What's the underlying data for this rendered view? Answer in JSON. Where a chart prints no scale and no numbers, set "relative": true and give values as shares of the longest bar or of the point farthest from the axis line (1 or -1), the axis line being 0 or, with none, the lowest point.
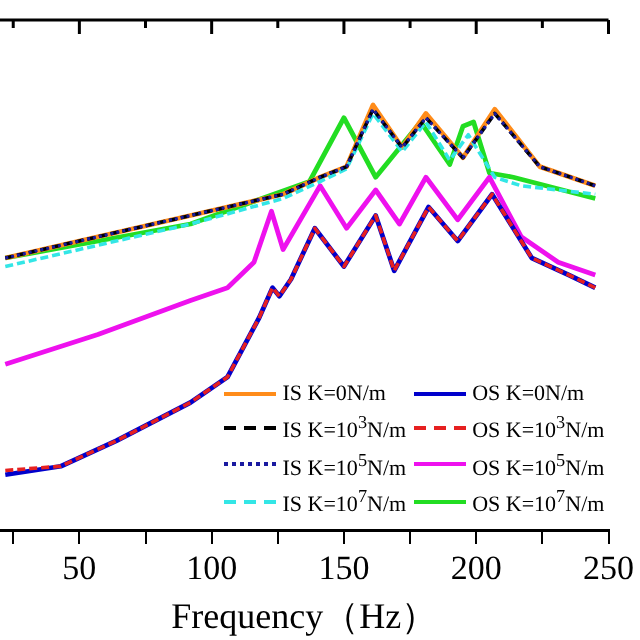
{
  "chart_data": {
    "type": "line",
    "xlabel": "Frequency（Hz）",
    "relative": true,
    "xlim": [
      20,
      250
    ],
    "xticks": [
      {
        "value": 25,
        "label": null
      },
      50,
      {
        "value": 75,
        "label": null
      },
      100,
      {
        "value": 125,
        "label": null
      },
      150,
      {
        "value": 175,
        "label": null
      },
      200,
      {
        "value": 225,
        "label": null
      },
      250
    ],
    "tick_labels": "x",
    "grid": false,
    "legend": "bottom right",
    "marker": "none",
    "series": [
      {
        "name": "IS K=0N/m",
        "color": "#ff8c1a",
        "line_style": "solid",
        "x": [
          22,
          92,
          127,
          141,
          151,
          161,
          172,
          181,
          195,
          207,
          224,
          245
        ],
        "values": [
          0.64,
          0.74,
          0.79,
          0.83,
          0.855,
          1.0,
          0.9,
          0.98,
          0.876,
          0.99,
          0.855,
          0.81
        ]
      },
      {
        "name": "IS K=10$^{3}$N/m",
        "color": "#000000",
        "line_style": "dashed",
        "x": [
          22,
          92,
          127,
          141,
          151,
          161,
          172,
          181,
          195,
          207,
          224,
          245
        ],
        "values": [
          0.64,
          0.74,
          0.79,
          0.83,
          0.855,
          0.99,
          0.9,
          0.97,
          0.876,
          0.98,
          0.855,
          0.81
        ]
      },
      {
        "name": "IS K=10$^{5}$N/m",
        "color": "#1a1aa0",
        "line_style": "dotted",
        "x": [
          22,
          92,
          127,
          141,
          151,
          161,
          172,
          181,
          195,
          207,
          224,
          245
        ],
        "values": [
          0.64,
          0.74,
          0.79,
          0.83,
          0.855,
          0.99,
          0.9,
          0.97,
          0.876,
          0.98,
          0.855,
          0.81
        ]
      },
      {
        "name": "IS K=10$^{7}$N/m",
        "color": "#33e6e6",
        "line_style": "dashed",
        "x": [
          22,
          92,
          127,
          141,
          151,
          161,
          172,
          181,
          190,
          197,
          207,
          217,
          245
        ],
        "values": [
          0.62,
          0.72,
          0.78,
          0.82,
          0.85,
          0.98,
          0.89,
          0.96,
          0.87,
          0.93,
          0.83,
          0.81,
          0.79
        ]
      },
      {
        "name": "OS K=0N/m",
        "color": "#0000cc",
        "line_style": "solid",
        "x": [
          22,
          43,
          64,
          92,
          106,
          118,
          123,
          125.6,
          130,
          139,
          150,
          162,
          169,
          182,
          193,
          206,
          221,
          235,
          245
        ],
        "values": [
          0.13,
          0.15,
          0.21,
          0.3,
          0.36,
          0.5,
          0.57,
          0.55,
          0.59,
          0.71,
          0.62,
          0.74,
          0.61,
          0.76,
          0.68,
          0.79,
          0.64,
          0.6,
          0.57
        ]
      },
      {
        "name": "OS K=10$^{3}$N/m",
        "color": "#e62020",
        "line_style": "dashed",
        "x": [
          22,
          43,
          64,
          92,
          106,
          118,
          123,
          125.6,
          130,
          139,
          150,
          162,
          169,
          182,
          193,
          206,
          221,
          235,
          245
        ],
        "values": [
          0.14,
          0.15,
          0.21,
          0.3,
          0.36,
          0.5,
          0.57,
          0.55,
          0.59,
          0.71,
          0.62,
          0.74,
          0.61,
          0.76,
          0.68,
          0.79,
          0.64,
          0.6,
          0.57
        ]
      },
      {
        "name": "OS K=10$^{5}$N/m",
        "color": "#ee11ee",
        "line_style": "solid",
        "x": [
          22,
          57,
          92,
          106,
          116,
          122.6,
          127,
          141,
          151,
          162,
          171,
          181,
          193,
          205,
          217,
          231,
          245
        ],
        "values": [
          0.39,
          0.46,
          0.54,
          0.57,
          0.63,
          0.75,
          0.66,
          0.81,
          0.71,
          0.8,
          0.72,
          0.83,
          0.73,
          0.83,
          0.69,
          0.63,
          0.6
        ]
      },
      {
        "name": "OS K=10$^{7}$N/m",
        "color": "#22dd22",
        "line_style": "solid",
        "x": [
          22,
          92,
          137,
          150,
          162,
          179,
          190,
          195,
          199,
          205,
          214,
          245
        ],
        "values": [
          0.64,
          0.72,
          0.82,
          0.97,
          0.83,
          0.96,
          0.86,
          0.95,
          0.96,
          0.84,
          0.83,
          0.78
        ]
      }
    ]
  }
}
